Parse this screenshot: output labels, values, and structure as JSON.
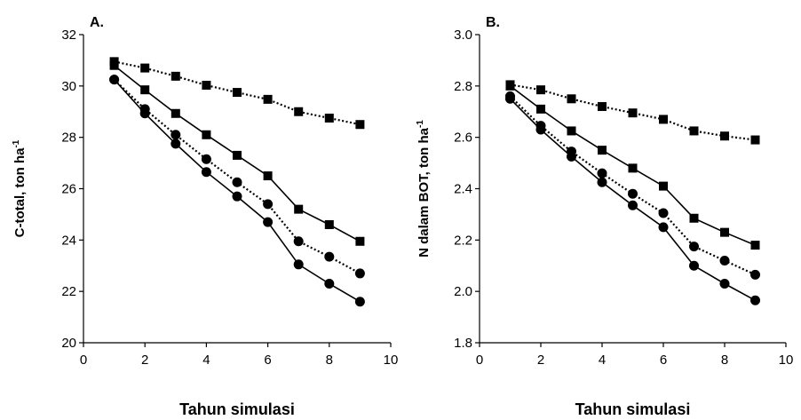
{
  "chart_data": [
    {
      "type": "line",
      "panel_label": "A.",
      "xlabel": "Tahun simulasi",
      "ylabel": "C-total, ton ha",
      "ylabel_sup": "-1",
      "xlim": [
        0,
        10
      ],
      "ylim": [
        20,
        32
      ],
      "xticks": [
        0,
        2,
        4,
        6,
        8,
        10
      ],
      "yticks": [
        20,
        22,
        24,
        26,
        28,
        30,
        32
      ],
      "x": [
        1,
        2,
        3,
        4,
        5,
        6,
        7,
        8,
        9
      ],
      "series": [
        {
          "marker": "square",
          "line": "dotted",
          "values": [
            30.95,
            30.7,
            30.38,
            30.03,
            29.75,
            29.48,
            29.0,
            28.75,
            28.5
          ]
        },
        {
          "marker": "square",
          "line": "solid",
          "values": [
            30.8,
            29.85,
            28.93,
            28.1,
            27.3,
            26.5,
            25.2,
            24.6,
            23.95
          ]
        },
        {
          "marker": "circle",
          "line": "dotted",
          "values": [
            30.25,
            29.1,
            28.1,
            27.15,
            26.25,
            25.4,
            23.95,
            23.35,
            22.7
          ]
        },
        {
          "marker": "circle",
          "line": "solid",
          "values": [
            30.25,
            28.93,
            27.75,
            26.65,
            25.7,
            24.7,
            23.05,
            22.3,
            21.6
          ]
        }
      ]
    },
    {
      "type": "line",
      "panel_label": "B.",
      "xlabel": "Tahun simulasi",
      "ylabel": "N dalam BOT, ton ha",
      "ylabel_sup": "-1",
      "xlim": [
        0,
        10
      ],
      "ylim": [
        1.8,
        3.0
      ],
      "xticks": [
        0,
        2,
        4,
        6,
        8,
        10
      ],
      "yticks": [
        1.8,
        2.0,
        2.2,
        2.4,
        2.6,
        2.8,
        3.0
      ],
      "x": [
        1,
        2,
        3,
        4,
        5,
        6,
        7,
        8,
        9
      ],
      "series": [
        {
          "marker": "square",
          "line": "dotted",
          "values": [
            2.805,
            2.785,
            2.75,
            2.72,
            2.695,
            2.67,
            2.625,
            2.605,
            2.59
          ]
        },
        {
          "marker": "square",
          "line": "solid",
          "values": [
            2.8,
            2.71,
            2.625,
            2.55,
            2.48,
            2.41,
            2.285,
            2.23,
            2.18
          ]
        },
        {
          "marker": "circle",
          "line": "dotted",
          "values": [
            2.76,
            2.645,
            2.545,
            2.46,
            2.38,
            2.305,
            2.175,
            2.12,
            2.065
          ]
        },
        {
          "marker": "circle",
          "line": "solid",
          "values": [
            2.75,
            2.63,
            2.525,
            2.425,
            2.335,
            2.25,
            2.1,
            2.03,
            1.965
          ]
        }
      ]
    }
  ]
}
